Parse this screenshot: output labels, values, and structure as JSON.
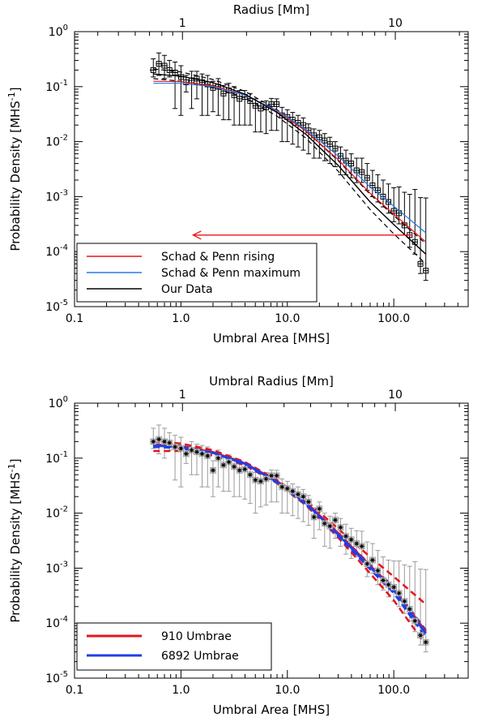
{
  "chart_data": [
    {
      "type": "line",
      "xscale": "log",
      "yscale": "log",
      "xlim": [
        0.1,
        500
      ],
      "ylim": [
        1e-05,
        1
      ],
      "xlabel": "Umbral Area [MHS]",
      "ylabel": "Probability Density [MHS",
      "ylabel_sup": "-1",
      "ylabel_close": "]",
      "top_axis_label": "Radius [Mm]",
      "x_tick_labels": [
        "0.1",
        "1.0",
        "10.0",
        "100.0"
      ],
      "y_tick_labels": [
        {
          "base": "10",
          "exp": "-5"
        },
        {
          "base": "10",
          "exp": "-4"
        },
        {
          "base": "10",
          "exp": "-3"
        },
        {
          "base": "10",
          "exp": "-2"
        },
        {
          "base": "10",
          "exp": "-1"
        },
        {
          "base": "10",
          "exp": "0"
        }
      ],
      "top_tick_labels": [
        "1",
        "10"
      ],
      "legend": {
        "placement": "bottom-left",
        "entries": [
          {
            "label": "Schad & Penn rising",
            "color": "#e8141b"
          },
          {
            "label": "Schad & Penn maximum",
            "color": "#2a78e8"
          },
          {
            "label": "Our Data",
            "color": "#000000"
          }
        ]
      },
      "series": [
        {
          "name": "Schad & Penn rising",
          "color": "#e8141b",
          "x": [
            0.55,
            1.0,
            2.0,
            4.0,
            8.0,
            15.0,
            30.0,
            60.0,
            100.0,
            200.0
          ],
          "y": [
            0.125,
            0.123,
            0.104,
            0.071,
            0.036,
            0.0155,
            0.0047,
            0.00115,
            0.00048,
            0.00015
          ]
        },
        {
          "name": "Schad & Penn maximum",
          "color": "#2a78e8",
          "x": [
            0.55,
            1.0,
            2.0,
            4.0,
            8.0,
            15.0,
            30.0,
            60.0,
            100.0,
            200.0
          ],
          "y": [
            0.115,
            0.115,
            0.1,
            0.07,
            0.037,
            0.0165,
            0.0055,
            0.0015,
            0.00067,
            0.00022
          ]
        },
        {
          "name": "Our Data",
          "color": "#000000",
          "x": [
            0.55,
            1.0,
            2.0,
            4.0,
            8.0,
            15.0,
            30.0,
            60.0,
            100.0,
            200.0
          ],
          "y": [
            0.17,
            0.155,
            0.118,
            0.073,
            0.034,
            0.0135,
            0.0037,
            0.0008,
            0.00031,
            9e-05
          ]
        }
      ],
      "black_dashed_bands": [
        {
          "x": [
            0.55,
            1.0,
            2.0,
            4.0,
            8.0,
            15.0,
            30.0,
            60.0,
            100.0,
            200.0
          ],
          "y": [
            0.21,
            0.185,
            0.135,
            0.082,
            0.038,
            0.0155,
            0.0045,
            0.0011,
            0.00045,
            0.00014
          ]
        },
        {
          "x": [
            0.55,
            1.0,
            2.0,
            4.0,
            8.0,
            15.0,
            30.0,
            60.0,
            100.0,
            200.0
          ],
          "y": [
            0.14,
            0.125,
            0.098,
            0.063,
            0.029,
            0.0115,
            0.0029,
            0.00058,
            0.00021,
            6e-05
          ]
        }
      ],
      "points": {
        "x": [
          0.55,
          0.62,
          0.7,
          0.78,
          0.88,
          1.0,
          1.12,
          1.26,
          1.41,
          1.58,
          1.78,
          2.0,
          2.24,
          2.51,
          2.82,
          3.16,
          3.55,
          3.98,
          4.47,
          5.01,
          5.62,
          6.31,
          7.08,
          7.94,
          8.91,
          10.0,
          11.2,
          12.6,
          14.1,
          15.8,
          17.8,
          20.0,
          22.4,
          25.1,
          28.2,
          31.6,
          35.5,
          39.8,
          44.7,
          50.1,
          56.2,
          63.1,
          70.8,
          79.4,
          89.1,
          100.0,
          112.0,
          126.0,
          141.0,
          158.0,
          178.0,
          200.0
        ],
        "y": [
          0.2,
          0.26,
          0.24,
          0.2,
          0.18,
          0.15,
          0.12,
          0.13,
          0.14,
          0.12,
          0.11,
          0.095,
          0.1,
          0.075,
          0.085,
          0.07,
          0.06,
          0.065,
          0.055,
          0.045,
          0.04,
          0.042,
          0.048,
          0.048,
          0.03,
          0.028,
          0.025,
          0.022,
          0.02,
          0.016,
          0.013,
          0.012,
          0.0105,
          0.009,
          0.0075,
          0.0055,
          0.0045,
          0.004,
          0.003,
          0.0028,
          0.0022,
          0.0016,
          0.0013,
          0.001,
          0.0008,
          0.00055,
          0.0005,
          0.0003,
          0.0002,
          0.00015,
          6e-05,
          4.5e-05
        ],
        "yerr_low": [
          0.05,
          0.1,
          0.1,
          0.05,
          0.14,
          0.12,
          0.04,
          0.09,
          0.08,
          0.09,
          0.08,
          0.06,
          0.07,
          0.05,
          0.06,
          0.05,
          0.04,
          0.045,
          0.035,
          0.03,
          0.025,
          0.028,
          0.032,
          0.032,
          0.02,
          0.018,
          0.016,
          0.014,
          0.013,
          0.01,
          0.008,
          0.007,
          0.006,
          0.005,
          0.004,
          0.003,
          0.002,
          0.0018,
          0.0012,
          0.00099,
          0.0009,
          0.0006,
          0.0005,
          0.00035,
          0.0003,
          0.0002,
          0.00018,
          0.0001,
          8e-05,
          6e-05,
          2e-05,
          1.5e-05
        ],
        "yerr_high": [
          0.12,
          0.15,
          0.13,
          0.1,
          0.1,
          0.09,
          0.04,
          0.06,
          0.05,
          0.05,
          0.05,
          0.03,
          0.04,
          0.03,
          0.03,
          0.03,
          0.025,
          0.02,
          0.02,
          0.015,
          0.013,
          0.013,
          0.013,
          0.012,
          0.012,
          0.01,
          0.009,
          0.008,
          0.007,
          0.005,
          0.004,
          0.004,
          0.0035,
          0.003,
          0.0025,
          0.0025,
          0.0025,
          0.002,
          0.002,
          0.0022,
          0.0018,
          0.0014,
          0.0012,
          0.001,
          0.0009,
          0.0009,
          0.001,
          0.0009,
          0.0009,
          0.0012,
          0.0009,
          0.0009
        ],
        "xerr": [
          0.04,
          0.04,
          0.05,
          0.05,
          0.06,
          0.06,
          0.07,
          0.08,
          0.09,
          0.1,
          0.11,
          0.12,
          0.13,
          0.15,
          0.17,
          0.19,
          0.21,
          0.24,
          0.27,
          0.3,
          0.33,
          0.37,
          0.42,
          0.47,
          0.53,
          0.6,
          0.66,
          0.75,
          0.84,
          0.94,
          1.05,
          1.19,
          1.33,
          1.49,
          1.67,
          1.88,
          2.1,
          2.37,
          2.65,
          2.98,
          3.3,
          3.7,
          4.2,
          4.7,
          5.3,
          6.0,
          6.6,
          7.5,
          8.4,
          9.4,
          10.5,
          11.9
        ]
      },
      "arrow": {
        "color": "#e8141b",
        "from": [
          150,
          0.0002
        ],
        "to": [
          1.3,
          0.0002
        ]
      }
    },
    {
      "type": "line",
      "xscale": "log",
      "yscale": "log",
      "xlim": [
        0.1,
        500
      ],
      "ylim": [
        1e-05,
        1
      ],
      "xlabel": "Umbral Area [MHS]",
      "ylabel": "Probability Density [MHS",
      "ylabel_sup": "-1",
      "ylabel_close": "]",
      "top_axis_label": "Umbral Radius [Mm]",
      "x_tick_labels": [
        "0.1",
        "1.0",
        "10.0",
        "100.0"
      ],
      "y_tick_labels": [
        {
          "base": "10",
          "exp": "-5"
        },
        {
          "base": "10",
          "exp": "-4"
        },
        {
          "base": "10",
          "exp": "-3"
        },
        {
          "base": "10",
          "exp": "-2"
        },
        {
          "base": "10",
          "exp": "-1"
        },
        {
          "base": "10",
          "exp": "0"
        }
      ],
      "top_tick_labels": [
        "1",
        "10"
      ],
      "legend": {
        "placement": "bottom-left",
        "entries": [
          {
            "label": "910 Umbrae",
            "color": "#e8141b"
          },
          {
            "label": "6892 Umbrae",
            "color": "#1f3fe8"
          }
        ]
      },
      "series": [
        {
          "name": "910 Umbrae",
          "color": "#e8141b",
          "x": [
            0.55,
            1.0,
            2.0,
            4.0,
            8.0,
            15.0,
            30.0,
            60.0,
            100.0,
            200.0
          ],
          "y": [
            0.175,
            0.165,
            0.128,
            0.08,
            0.038,
            0.0155,
            0.0043,
            0.0011,
            0.00042,
            7e-05
          ]
        },
        {
          "name": "6892 Umbrae",
          "color": "#1f3fe8",
          "x": [
            0.55,
            1.0,
            2.0,
            4.0,
            8.0,
            15.0,
            30.0,
            60.0,
            100.0,
            200.0
          ],
          "y": [
            0.17,
            0.16,
            0.125,
            0.079,
            0.037,
            0.015,
            0.0041,
            0.00105,
            0.0004,
            6.5e-05
          ]
        }
      ],
      "red_dashed_bands": [
        {
          "x": [
            0.55,
            1.0,
            2.0,
            4.0,
            8.0,
            15.0,
            30.0,
            60.0,
            100.0,
            200.0
          ],
          "y": [
            0.2,
            0.185,
            0.14,
            0.085,
            0.04,
            0.017,
            0.0052,
            0.0016,
            0.0007,
            0.00022
          ]
        },
        {
          "x": [
            0.55,
            1.0,
            2.0,
            4.0,
            8.0,
            15.0,
            30.0,
            60.0,
            100.0,
            200.0
          ],
          "y": [
            0.135,
            0.135,
            0.112,
            0.074,
            0.035,
            0.0138,
            0.0036,
            0.0008,
            0.00026,
            4e-05
          ]
        }
      ],
      "blue_dashed_bands": [
        {
          "x": [
            0.55,
            1.0,
            2.0,
            4.0,
            8.0,
            15.0,
            30.0,
            60.0,
            100.0,
            200.0
          ],
          "y": [
            0.18,
            0.168,
            0.13,
            0.082,
            0.0385,
            0.0157,
            0.0044,
            0.00115,
            0.00045,
            7.5e-05
          ]
        },
        {
          "x": [
            0.55,
            1.0,
            2.0,
            4.0,
            8.0,
            15.0,
            30.0,
            60.0,
            100.0,
            200.0
          ],
          "y": [
            0.16,
            0.152,
            0.12,
            0.076,
            0.0355,
            0.0143,
            0.0038,
            0.00095,
            0.00035,
            5.5e-05
          ]
        }
      ],
      "points": {
        "x": [
          0.55,
          0.62,
          0.7,
          0.78,
          0.88,
          1.0,
          1.12,
          1.26,
          1.41,
          1.58,
          1.78,
          2.0,
          2.24,
          2.51,
          2.82,
          3.16,
          3.55,
          3.98,
          4.47,
          5.01,
          5.62,
          6.31,
          7.08,
          7.94,
          8.91,
          10.0,
          11.2,
          12.6,
          14.1,
          15.8,
          17.8,
          20.0,
          22.4,
          25.1,
          28.2,
          31.6,
          35.5,
          39.8,
          44.7,
          50.1,
          56.2,
          63.1,
          70.8,
          79.4,
          89.1,
          100.0,
          112.0,
          126.0,
          141.0,
          158.0,
          178.0,
          200.0
        ],
        "y": [
          0.2,
          0.22,
          0.2,
          0.19,
          0.16,
          0.15,
          0.12,
          0.14,
          0.13,
          0.12,
          0.11,
          0.06,
          0.1,
          0.075,
          0.085,
          0.07,
          0.06,
          0.063,
          0.05,
          0.04,
          0.038,
          0.042,
          0.048,
          0.048,
          0.03,
          0.028,
          0.025,
          0.022,
          0.02,
          0.016,
          0.0085,
          0.012,
          0.0065,
          0.0058,
          0.0075,
          0.0055,
          0.0038,
          0.0033,
          0.0028,
          0.0025,
          0.0012,
          0.0014,
          0.0009,
          0.0006,
          0.0005,
          0.00045,
          0.00035,
          0.00025,
          0.00018,
          0.00011,
          6e-05,
          4.5e-05
        ],
        "yerr_low": [
          0.05,
          0.1,
          0.1,
          0.05,
          0.12,
          0.12,
          0.04,
          0.09,
          0.08,
          0.09,
          0.08,
          0.04,
          0.07,
          0.05,
          0.06,
          0.05,
          0.04,
          0.045,
          0.035,
          0.03,
          0.025,
          0.028,
          0.032,
          0.032,
          0.02,
          0.018,
          0.016,
          0.014,
          0.013,
          0.01,
          0.005,
          0.007,
          0.004,
          0.0035,
          0.004,
          0.003,
          0.002,
          0.0018,
          0.0012,
          0.00099,
          0.0005,
          0.0006,
          0.0004,
          0.0002,
          0.0002,
          0.0002,
          0.00015,
          0.0001,
          7e-05,
          4e-05,
          2e-05,
          1.5e-05
        ],
        "yerr_high": [
          0.15,
          0.18,
          0.15,
          0.1,
          0.1,
          0.09,
          0.04,
          0.06,
          0.05,
          0.05,
          0.05,
          0.03,
          0.04,
          0.03,
          0.03,
          0.03,
          0.025,
          0.02,
          0.02,
          0.015,
          0.013,
          0.013,
          0.013,
          0.012,
          0.012,
          0.01,
          0.009,
          0.008,
          0.007,
          0.005,
          0.004,
          0.004,
          0.0035,
          0.003,
          0.0025,
          0.0025,
          0.0025,
          0.002,
          0.002,
          0.0022,
          0.0018,
          0.0014,
          0.0012,
          0.001,
          0.0009,
          0.0009,
          0.001,
          0.0009,
          0.0009,
          0.0012,
          0.0009,
          0.0009
        ]
      }
    }
  ]
}
